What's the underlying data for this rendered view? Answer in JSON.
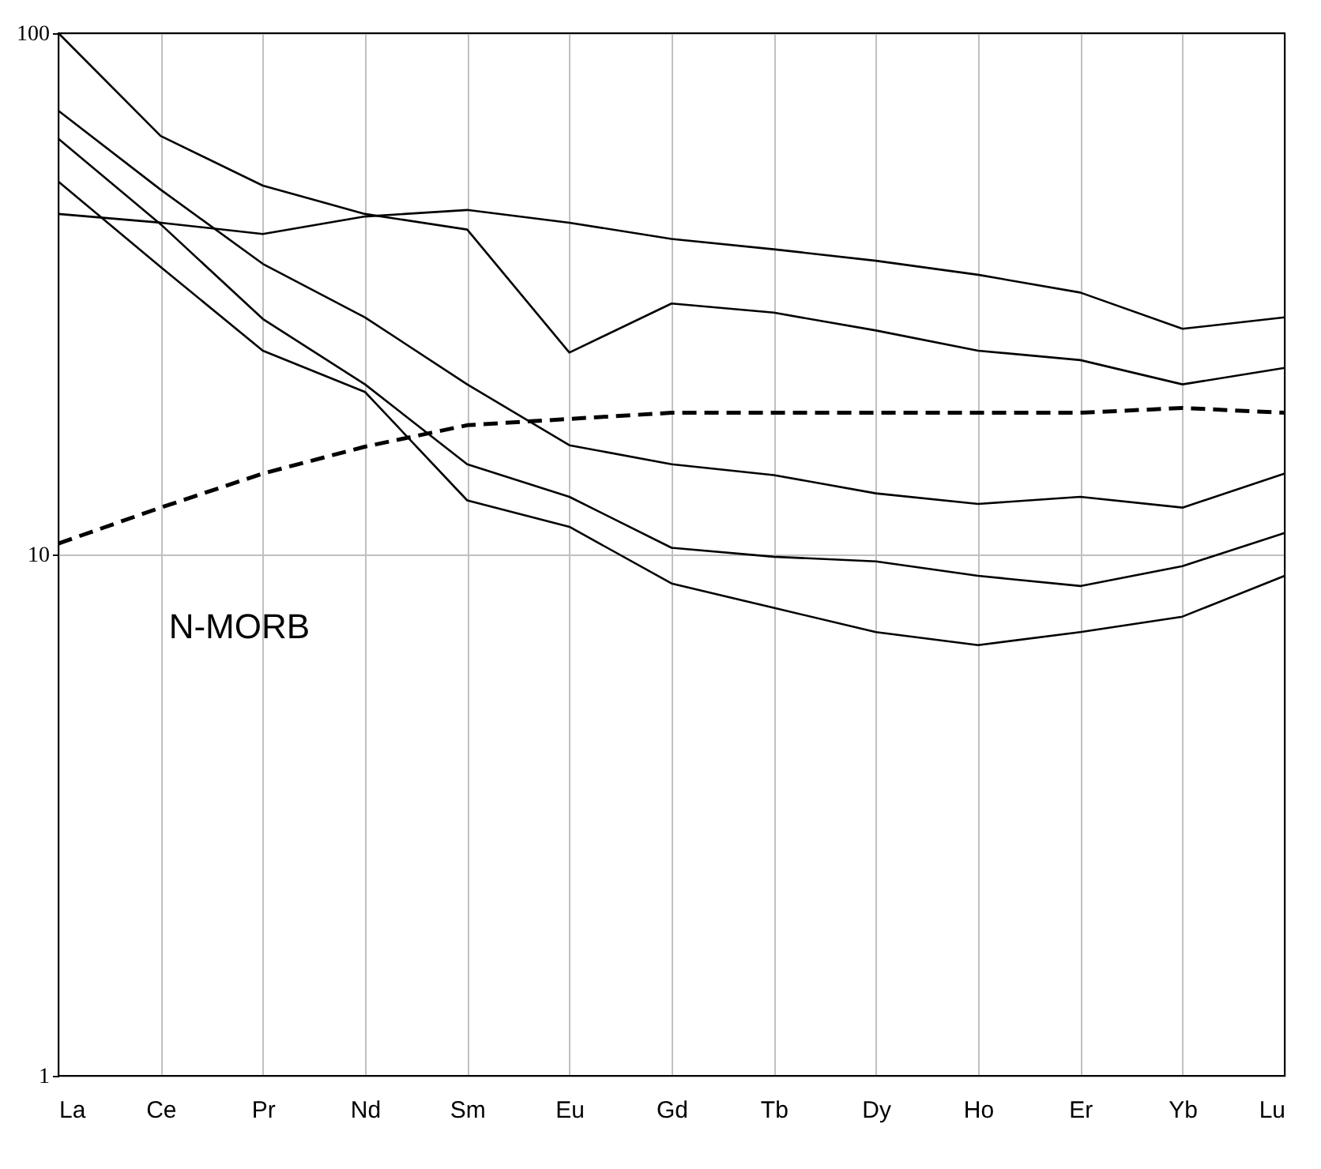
{
  "chart_data": {
    "type": "line",
    "categories": [
      "La",
      "Ce",
      "Pr",
      "Nd",
      "Sm",
      "Eu",
      "Gd",
      "Tb",
      "Dy",
      "Ho",
      "Er",
      "Yb",
      "Lu"
    ],
    "series": [
      {
        "color": "#000000",
        "values": [
          100,
          63.5,
          51,
          45,
          42,
          24.4,
          30.3,
          29.1,
          26.9,
          24.6,
          23.6,
          21.2,
          22.8
        ]
      },
      {
        "color": "#000000",
        "values": [
          45,
          43.3,
          41.2,
          44.5,
          45.8,
          43.3,
          40.3,
          38.5,
          36.6,
          34.4,
          31.8,
          27.1,
          28.5
        ]
      },
      {
        "color": "#000000",
        "values": [
          71,
          50.1,
          36.1,
          28.5,
          21.2,
          16.2,
          14.9,
          14.2,
          13.1,
          12.5,
          12.9,
          12.3,
          14.3
        ]
      },
      {
        "color": "#000000",
        "values": [
          62.7,
          43,
          28.3,
          21.2,
          14.9,
          12.9,
          10.3,
          9.9,
          9.7,
          9.1,
          8.7,
          9.5,
          11.0
        ]
      },
      {
        "color": "#000000",
        "values": [
          51.9,
          35.6,
          24.6,
          20.5,
          12.7,
          11.3,
          8.8,
          7.9,
          7.1,
          6.7,
          7.1,
          7.6,
          9.1
        ]
      },
      {
        "name": "N-MORB",
        "color": "#000000",
        "line_style": "dashed",
        "values": [
          10.5,
          12.3,
          14.3,
          16.1,
          17.7,
          18.2,
          18.7,
          18.7,
          18.7,
          18.7,
          18.7,
          19.1,
          18.7
        ]
      }
    ],
    "log": "y",
    "ylim": [
      1,
      100
    ],
    "yticks": [
      1,
      10,
      100
    ],
    "grid": true,
    "marker": "none"
  }
}
